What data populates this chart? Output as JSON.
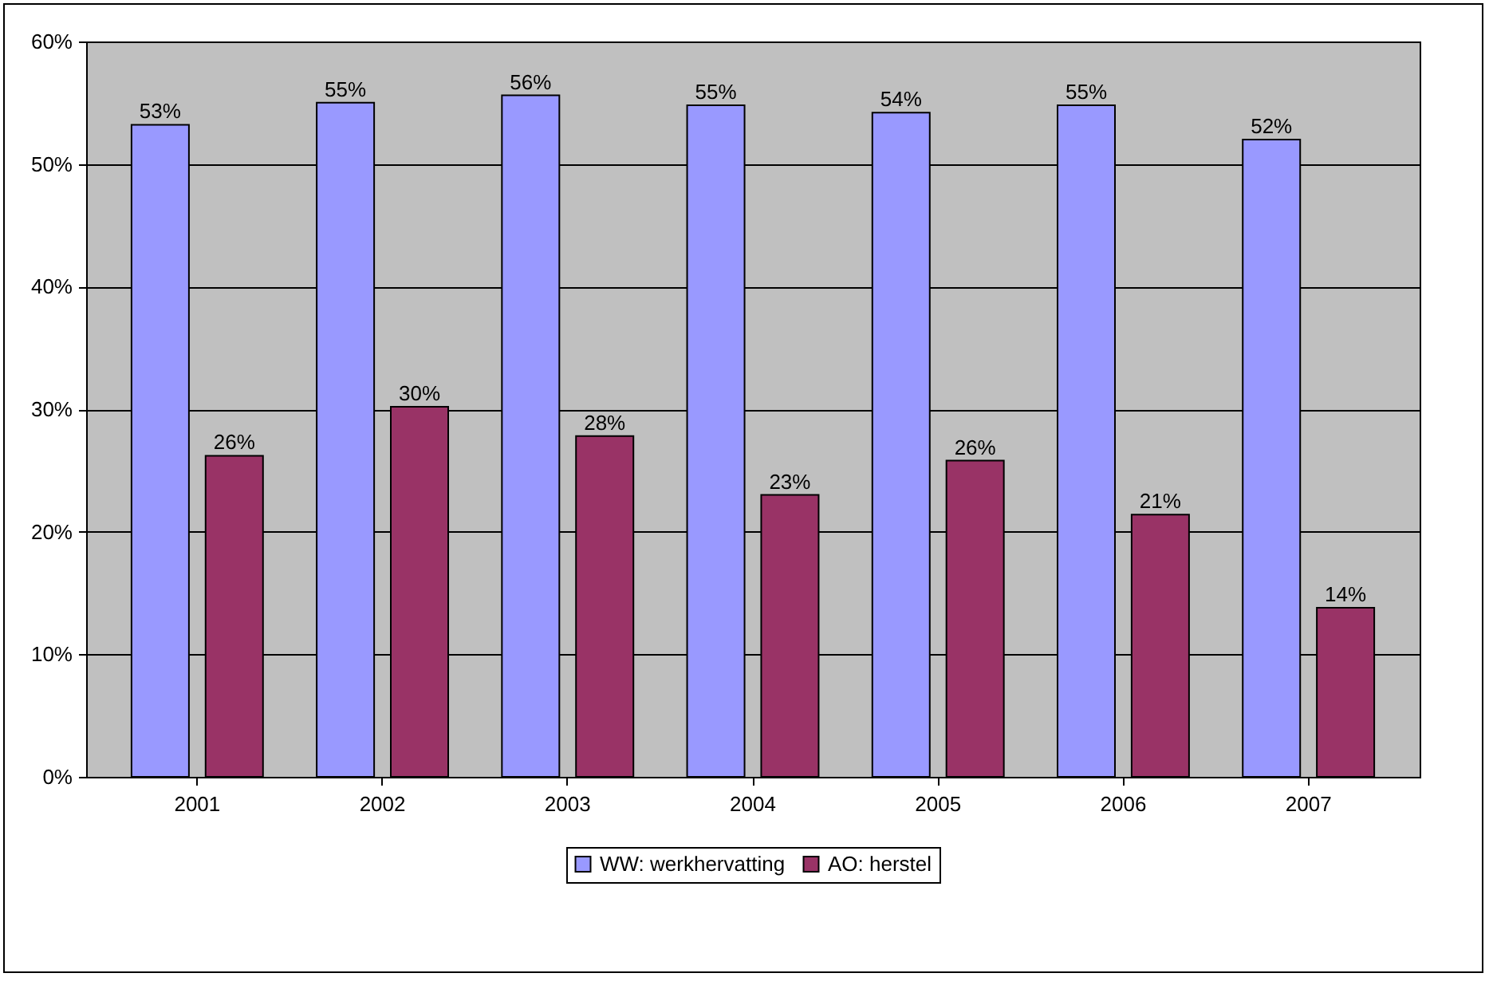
{
  "chart_data": {
    "type": "bar",
    "categories": [
      "2001",
      "2002",
      "2003",
      "2004",
      "2005",
      "2006",
      "2007"
    ],
    "series": [
      {
        "name": "WW: werkhervatting",
        "color": "#9999ff",
        "values": [
          53.2,
          55.0,
          55.6,
          54.8,
          54.2,
          54.8,
          52.0
        ],
        "value_labels": [
          "53%",
          "55%",
          "56%",
          "55%",
          "54%",
          "55%",
          "52%"
        ]
      },
      {
        "name": "AO: herstel",
        "color": "#993366",
        "values": [
          26.2,
          30.2,
          27.8,
          23.0,
          25.8,
          21.4,
          13.8
        ],
        "value_labels": [
          "26%",
          "30%",
          "28%",
          "23%",
          "26%",
          "21%",
          "14%"
        ]
      }
    ],
    "ylim": [
      0,
      60
    ],
    "yticks": [
      {
        "value": 0,
        "label": "0%"
      },
      {
        "value": 10,
        "label": "10%"
      },
      {
        "value": 20,
        "label": "20%"
      },
      {
        "value": 30,
        "label": "30%"
      },
      {
        "value": 40,
        "label": "40%"
      },
      {
        "value": 50,
        "label": "50%"
      },
      {
        "value": 60,
        "label": "60%"
      }
    ],
    "grid": "y",
    "legend": "bottom"
  }
}
